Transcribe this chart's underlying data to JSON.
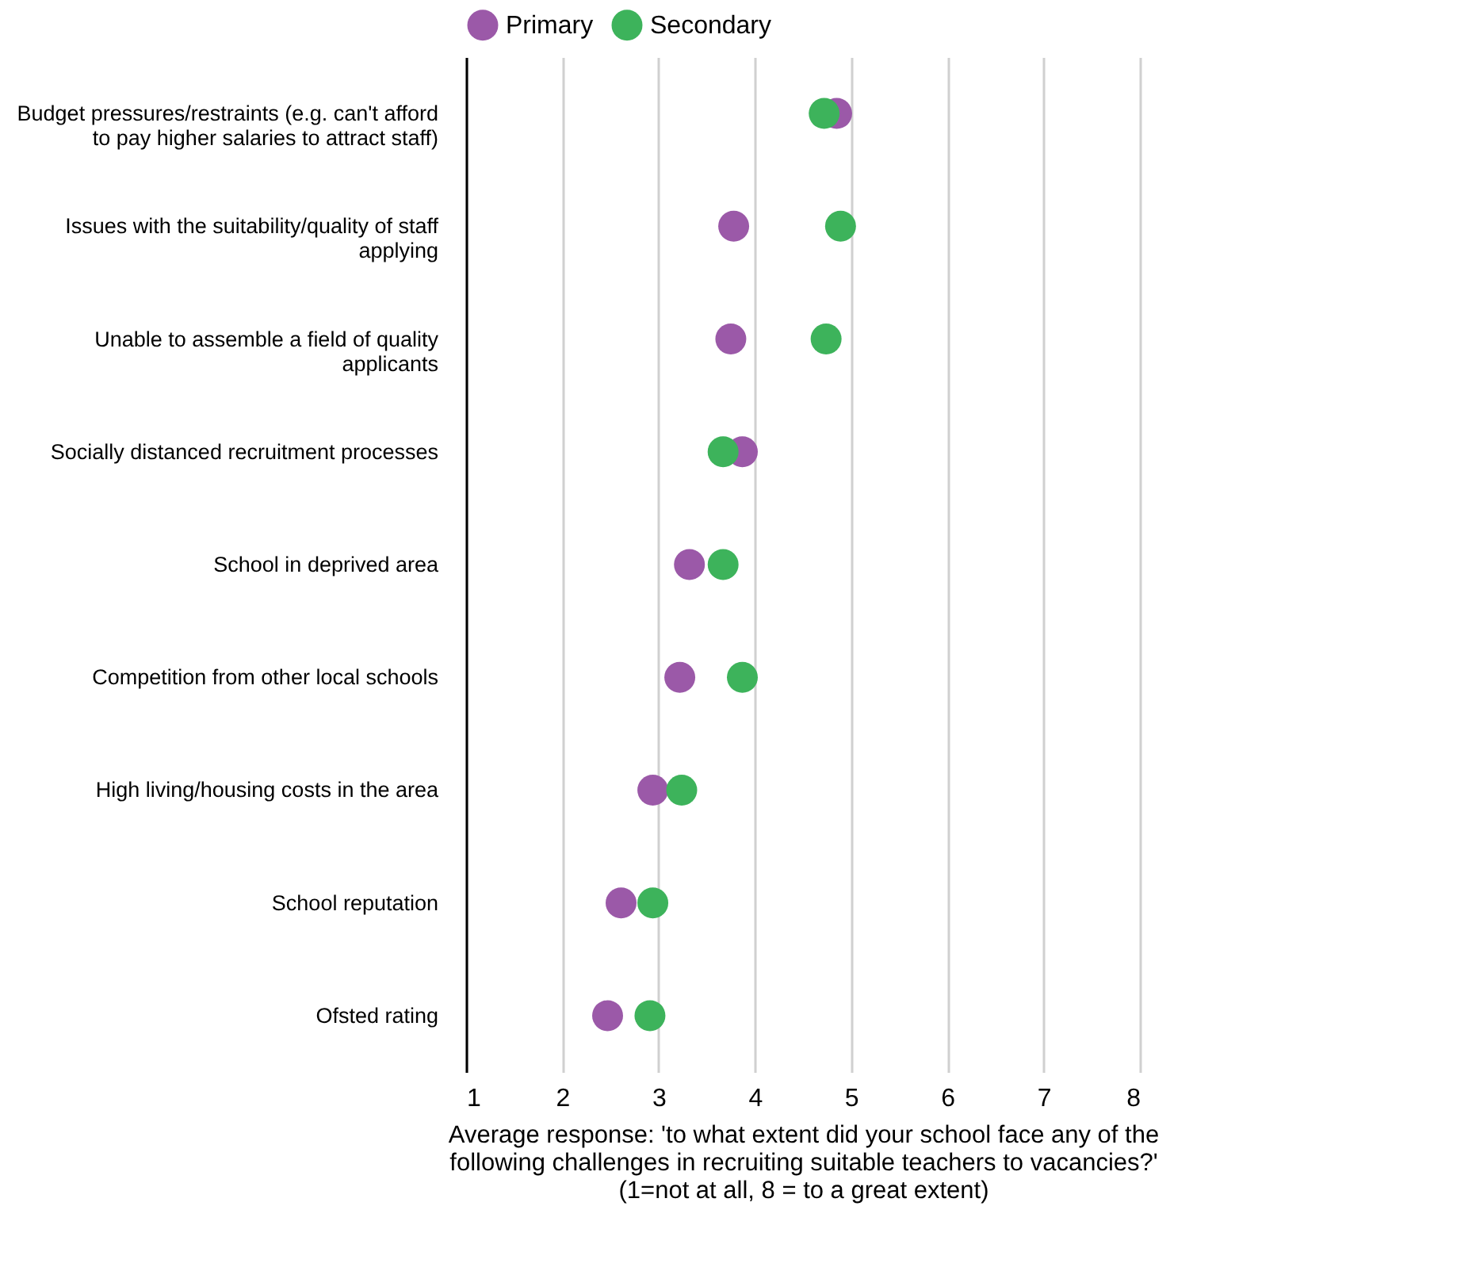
{
  "chart_data": {
    "type": "scatter",
    "xlabel": "Average response: 'to what extent did your school face any of the\nfollowing challenges in recruiting suitable teachers to vacancies?'\n(1=not at all, 8 = to a great extent)",
    "categories": [
      "Budget pressures/restraints (e.g. can't afford\nto pay higher salaries to attract staff)",
      "Issues with the suitability/quality of staff\napplying",
      "Unable to assemble a field of quality\napplicants",
      "Socially distanced recruitment processes",
      "School in deprived area",
      "Competition from other local schools",
      "High living/housing costs in the area",
      "School reputation",
      "Ofsted rating"
    ],
    "series": [
      {
        "name": "Primary",
        "color": "#9b59a8",
        "values": [
          4.85,
          3.78,
          3.75,
          3.87,
          3.32,
          3.22,
          2.94,
          2.61,
          2.47
        ]
      },
      {
        "name": "Secondary",
        "color": "#3db35b",
        "values": [
          4.72,
          4.89,
          4.74,
          3.67,
          3.67,
          3.87,
          3.24,
          2.94,
          2.91
        ]
      }
    ],
    "xlim": [
      1,
      8
    ],
    "xticks": [
      1,
      2,
      3,
      4,
      5,
      6,
      7,
      8
    ],
    "orientation": "horizontal",
    "grid": "x",
    "legend": "top",
    "marker": "circle"
  }
}
